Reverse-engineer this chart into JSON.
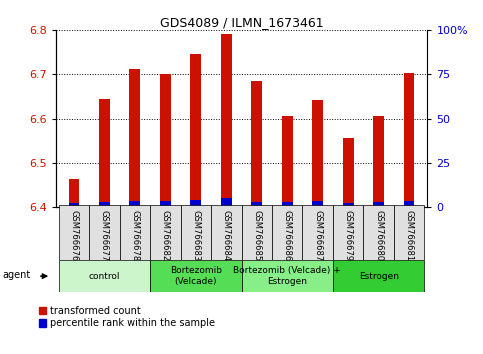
{
  "title": "GDS4089 / ILMN_1673461",
  "samples": [
    "GSM766676",
    "GSM766677",
    "GSM766678",
    "GSM766682",
    "GSM766683",
    "GSM766684",
    "GSM766685",
    "GSM766686",
    "GSM766687",
    "GSM766679",
    "GSM766680",
    "GSM766681"
  ],
  "red_values": [
    6.463,
    6.645,
    6.712,
    6.7,
    6.745,
    6.792,
    6.685,
    6.605,
    6.643,
    6.556,
    6.606,
    6.703
  ],
  "blue_heights": [
    0.008,
    0.01,
    0.012,
    0.012,
    0.014,
    0.018,
    0.01,
    0.01,
    0.012,
    0.008,
    0.01,
    0.012
  ],
  "ymin": 6.4,
  "ymax": 6.8,
  "y2min": 0,
  "y2max": 100,
  "y2ticks": [
    0,
    25,
    50,
    75,
    100
  ],
  "y2ticklabels": [
    "0",
    "25",
    "50",
    "75",
    "100%"
  ],
  "yticks": [
    6.4,
    6.5,
    6.6,
    6.7,
    6.8
  ],
  "groups": [
    {
      "label": "control",
      "start": 0,
      "end": 3,
      "color": "#d4f7d4"
    },
    {
      "label": "Bortezomib\n(Velcade)",
      "start": 3,
      "end": 6,
      "color": "#66dd66"
    },
    {
      "label": "Bortezomib (Velcade) +\nEstrogen",
      "start": 6,
      "end": 9,
      "color": "#88ee88"
    },
    {
      "label": "Estrogen",
      "start": 9,
      "end": 12,
      "color": "#44cc44"
    }
  ],
  "agent_label": "agent",
  "legend_red": "transformed count",
  "legend_blue": "percentile rank within the sample",
  "bar_width": 0.35,
  "red_color": "#cc1100",
  "blue_color": "#0000cc",
  "plot_bg_color": "#ffffff"
}
